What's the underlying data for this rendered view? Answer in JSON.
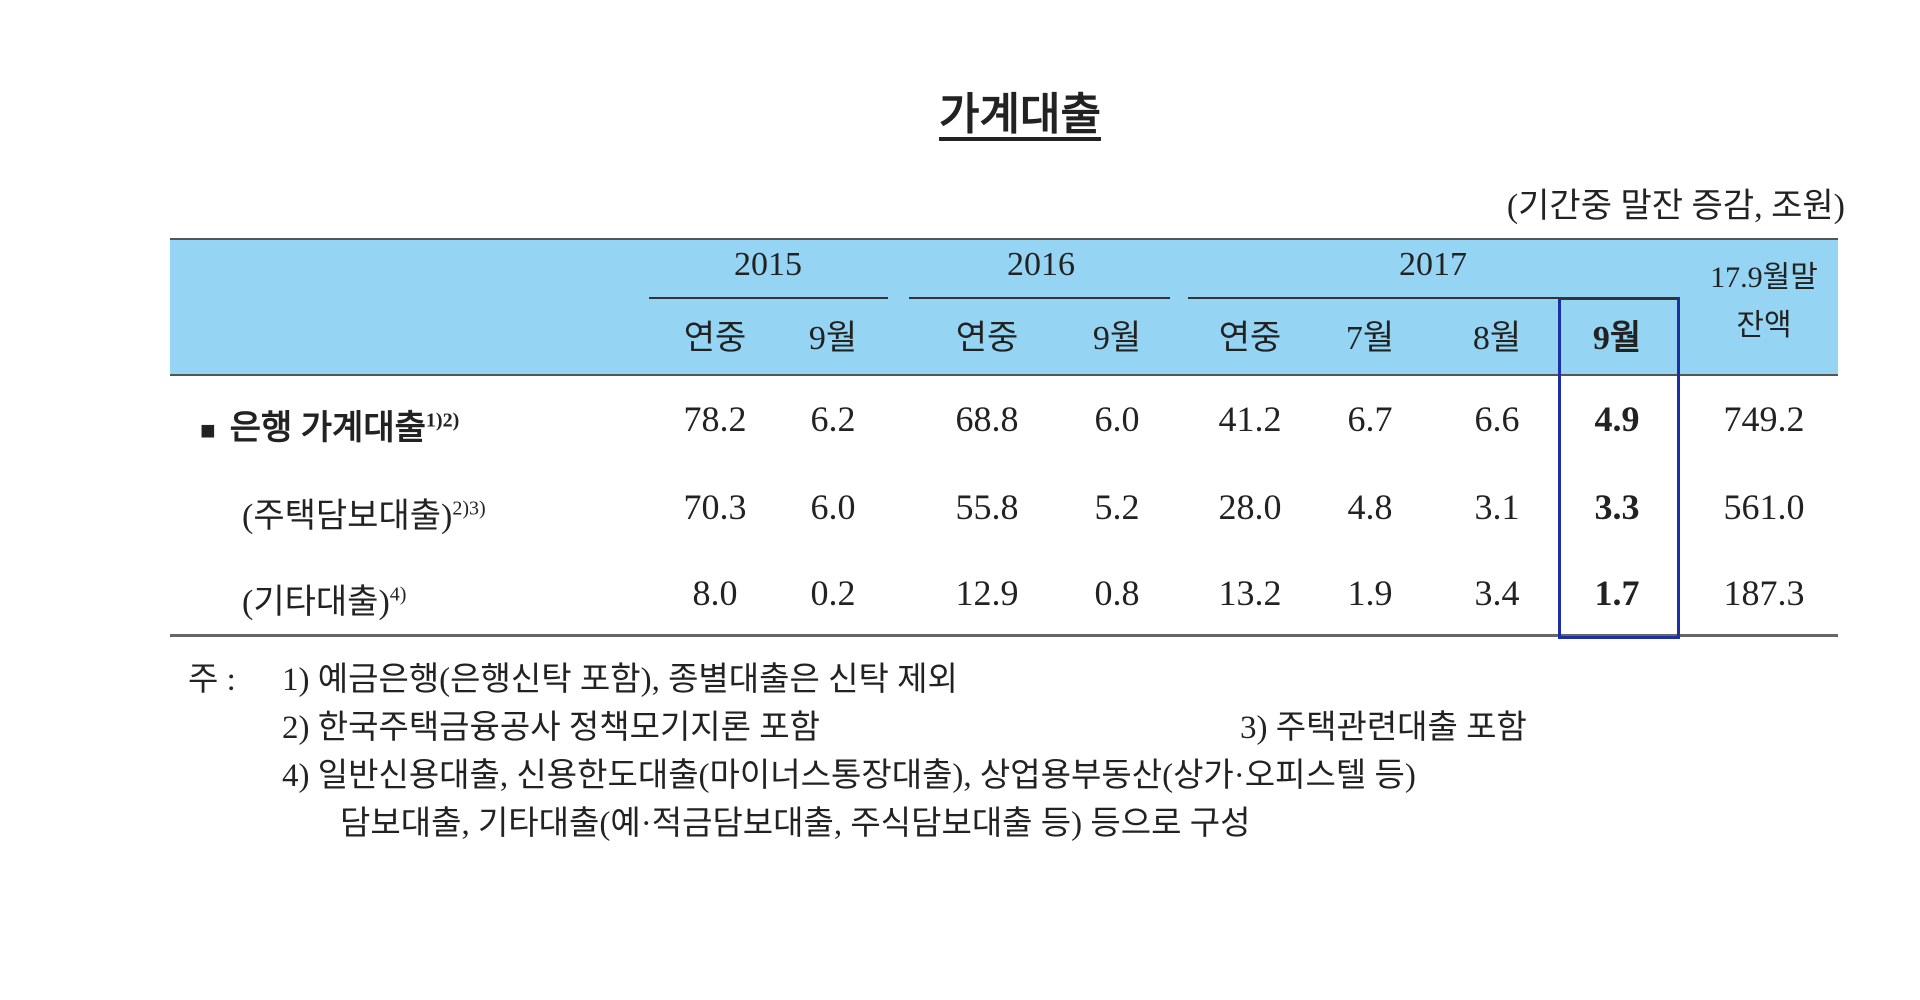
{
  "title": "가계대출",
  "unit": "(기간중 말잔 증감, 조원)",
  "table": {
    "years": [
      "2015",
      "2016",
      "2017"
    ],
    "balance_header": [
      "17.9월말",
      "잔액"
    ],
    "subheaders": [
      "연중",
      "9월",
      "연중",
      "9월",
      "연중",
      "7월",
      "8월",
      "9월"
    ],
    "rows": [
      {
        "label": "은행 가계대출",
        "sup": "1)2)",
        "values": [
          "78.2",
          "6.2",
          "68.8",
          "6.0",
          "41.2",
          "6.7",
          "6.6",
          "4.9",
          "749.2"
        ]
      },
      {
        "label": "(주택담보대출)",
        "sup": "2)3)",
        "values": [
          "70.3",
          "6.0",
          "55.8",
          "5.2",
          "28.0",
          "4.8",
          "3.1",
          "3.3",
          "561.0"
        ]
      },
      {
        "label": "(기타대출)",
        "sup": "4)",
        "values": [
          "8.0",
          "0.2",
          "12.9",
          "0.8",
          "13.2",
          "1.9",
          "3.4",
          "1.7",
          "187.3"
        ]
      }
    ]
  },
  "notes": {
    "prefix": "주 :",
    "items": [
      "1) 예금은행(은행신탁 포함), 종별대출은 신탁 제외",
      "2) 한국주택금융공사 정책모기지론 포함",
      "3) 주택관련대출 포함",
      "4) 일반신용대출, 신용한도대출(마이너스통장대출), 상업용부동산(상가·오피스텔 등)"
    ],
    "continuation": "담보대출, 기타대출(예·적금담보대출, 주식담보대출 등) 등으로 구성"
  }
}
